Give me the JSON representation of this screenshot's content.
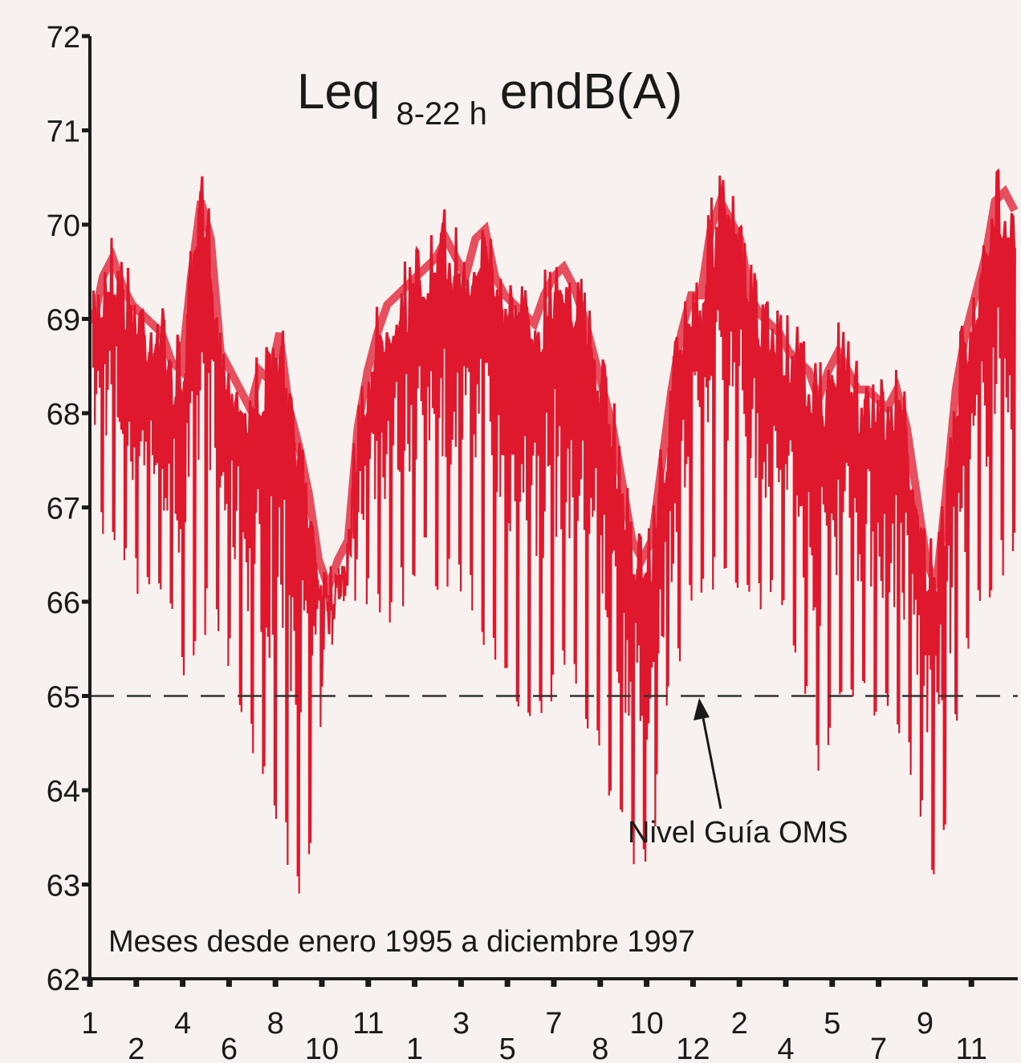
{
  "chart_data": {
    "type": "line",
    "title_main": "Leq",
    "title_sub": "8-22 h",
    "title_unit": "endB(A)",
    "xlabel": "Meses desde enero 1995 a diciembre 1997",
    "ylabel": "",
    "ylim": [
      62,
      72
    ],
    "yticks": [
      "62",
      "63",
      "64",
      "65",
      "66",
      "67",
      "68",
      "69",
      "70",
      "71",
      "72"
    ],
    "month_labels": [
      "1",
      "2",
      "4",
      "6",
      "8",
      "10",
      "11",
      "1",
      "3",
      "5",
      "7",
      "8",
      "10",
      "12",
      "2",
      "4",
      "5",
      "7",
      "9",
      "11"
    ],
    "reference_line": {
      "value": 65,
      "label": "Nivel Guía OMS"
    },
    "series_color": "#e0182d",
    "grid": false,
    "series": [
      {
        "upper": [
          69.3,
          69.8,
          70.0,
          69.7,
          69.5,
          69.4,
          69.3,
          69.2,
          68.9,
          68.8,
          69.8,
          70.6,
          70.2,
          69.0,
          68.8,
          68.6,
          68.4,
          68.8,
          68.7,
          69.2,
          68.4,
          68.0,
          67.5,
          66.8,
          66.5,
          66.8,
          67.0,
          68.2,
          68.8,
          69.2,
          69.5,
          69.6,
          69.7,
          69.8,
          69.9,
          70.0,
          70.2,
          70.0,
          69.8,
          70.2,
          70.3,
          69.8,
          69.6,
          69.5,
          69.4,
          69.3,
          69.6,
          69.8,
          69.9,
          69.7,
          69.4,
          69.0,
          68.6,
          68.2,
          67.6,
          67.0,
          66.8,
          67.0,
          67.8,
          68.6,
          69.2,
          69.6,
          69.6,
          70.3,
          70.6,
          70.4,
          70.2,
          69.6,
          69.4,
          69.3,
          69.2,
          69.0,
          68.9,
          68.8,
          68.5,
          68.8,
          69.0,
          68.8,
          68.6,
          68.6,
          68.5,
          68.4,
          68.6,
          68.2,
          67.5,
          66.8,
          66.5,
          67.5,
          68.6,
          69.2,
          69.6,
          70.0,
          70.6,
          70.7,
          70.5
        ],
        "lower": [
          66.8,
          66.6,
          66.4,
          66.2,
          66.0,
          66.0,
          65.9,
          65.7,
          65.5,
          65.2,
          64.8,
          65.5,
          65.8,
          65.4,
          65.1,
          64.8,
          64.4,
          64.0,
          63.6,
          63.4,
          63.1,
          62.9,
          63.0,
          64.2,
          65.3,
          65.8,
          66.0,
          66.0,
          65.9,
          65.8,
          65.7,
          65.8,
          66.0,
          66.2,
          66.2,
          66.1,
          66.0,
          66.0,
          65.9,
          65.7,
          65.5,
          65.2,
          65.0,
          64.9,
          64.8,
          64.6,
          64.7,
          64.9,
          65.0,
          64.9,
          64.6,
          64.4,
          64.0,
          63.8,
          63.5,
          63.2,
          62.8,
          63.3,
          64.2,
          64.9,
          65.3,
          65.8,
          66.0,
          66.1,
          66.2,
          66.2,
          66.1,
          66.0,
          65.9,
          65.8,
          65.7,
          65.5,
          65.0,
          64.6,
          64.1,
          64.3,
          64.9,
          65.0,
          64.9,
          64.8,
          64.7,
          64.6,
          64.4,
          64.2,
          63.7,
          63.3,
          62.9,
          63.6,
          64.5,
          65.1,
          65.6,
          65.9,
          66.1,
          66.2,
          66.3
        ]
      }
    ]
  }
}
